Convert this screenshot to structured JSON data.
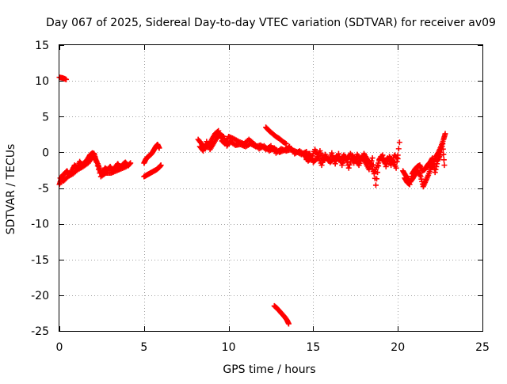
{
  "chart_data": {
    "type": "scatter",
    "title": "Day 067 of 2025, Sidereal Day-to-day VTEC variation (SDTVAR) for receiver av09",
    "xlabel": "GPS time / hours",
    "ylabel": "SDTVAR / TECUs",
    "xlim": [
      0,
      25
    ],
    "ylim": [
      -25,
      15
    ],
    "x_ticks": [
      0,
      5,
      10,
      15,
      20,
      25
    ],
    "y_ticks": [
      15,
      10,
      5,
      0,
      -5,
      -10,
      -15,
      -20,
      -25
    ],
    "x_tick_labels": [
      "0",
      "5",
      "10",
      "15",
      "20",
      "25"
    ],
    "y_tick_labels": [
      "15",
      "10",
      "5",
      "0",
      "-5",
      "-10",
      "-15",
      "-20",
      "-25"
    ],
    "grid": true,
    "marker": "plus",
    "color": "#ff0000",
    "series": [
      {
        "name": "seg1",
        "x": [
          0.0,
          0.2,
          0.4
        ],
        "y": [
          10.5,
          10.4,
          10.2
        ]
      },
      {
        "name": "seg2",
        "x": [
          0.0,
          0.1,
          0.2,
          0.3,
          0.45,
          0.6,
          0.75,
          0.9,
          1.05,
          1.2,
          1.35,
          1.5,
          1.65,
          1.8,
          1.95,
          2.05,
          2.15,
          2.3,
          2.4,
          2.5,
          2.6,
          2.7,
          2.85,
          3.0,
          3.15,
          3.3,
          3.45,
          3.6,
          3.75,
          3.9,
          4.05,
          4.2
        ],
        "y": [
          -4.5,
          -3.8,
          -3.2,
          -3.0,
          -2.6,
          -3.2,
          -2.5,
          -1.8,
          -2.2,
          -1.3,
          -1.9,
          -1.4,
          -1.0,
          -0.4,
          -0.1,
          -0.2,
          -1.0,
          -1.8,
          -2.6,
          -3.0,
          -2.7,
          -2.2,
          -2.5,
          -2.0,
          -2.6,
          -2.1,
          -1.6,
          -2.2,
          -1.7,
          -1.4,
          -1.9,
          -1.5
        ]
      },
      {
        "name": "seg2b",
        "x": [
          0.05,
          0.25,
          0.5,
          0.8,
          1.1,
          1.4,
          1.7,
          1.9,
          2.0,
          2.2,
          2.45,
          2.75,
          3.05,
          3.35,
          3.65,
          3.95
        ],
        "y": [
          -3.6,
          -4.0,
          -3.4,
          -3.0,
          -2.4,
          -2.0,
          -1.5,
          -0.8,
          -0.5,
          -1.4,
          -3.4,
          -2.9,
          -2.9,
          -2.6,
          -2.3,
          -2.0
        ]
      },
      {
        "name": "seg3",
        "x": [
          5.0,
          5.1,
          5.2,
          5.3,
          5.4,
          5.5,
          5.6,
          5.7,
          5.8,
          5.9
        ],
        "y": [
          -1.5,
          -1.0,
          -0.7,
          -0.5,
          -0.3,
          0.0,
          0.4,
          0.8,
          1.1,
          0.6
        ]
      },
      {
        "name": "seg4",
        "x": [
          5.0,
          5.15,
          5.3,
          5.45,
          5.6,
          5.75,
          5.9,
          6.0
        ],
        "y": [
          -3.4,
          -3.2,
          -3.0,
          -2.8,
          -2.6,
          -2.4,
          -2.1,
          -1.8
        ]
      },
      {
        "name": "seg5",
        "x": [
          8.2,
          8.4,
          8.6,
          8.8,
          9.0,
          9.2,
          9.4,
          9.6,
          9.8,
          10.0,
          10.3,
          10.6,
          10.9,
          11.2,
          11.5,
          11.8,
          12.1,
          12.4,
          12.7,
          13.0,
          13.3,
          13.6,
          13.9,
          14.2,
          14.5,
          14.8
        ],
        "y": [
          1.8,
          1.2,
          0.6,
          0.9,
          1.8,
          2.6,
          3.0,
          1.6,
          1.2,
          2.2,
          1.9,
          1.5,
          1.2,
          1.8,
          1.2,
          0.5,
          0.9,
          0.2,
          0.6,
          0.0,
          0.3,
          0.8,
          -0.2,
          0.2,
          -0.4,
          -0.2
        ]
      },
      {
        "name": "seg5b",
        "x": [
          8.3,
          8.5,
          8.7,
          8.9,
          9.1,
          9.3,
          9.5,
          9.7,
          9.9,
          10.1,
          10.4,
          10.7,
          11.0,
          11.3,
          11.6,
          11.9,
          12.2,
          12.5,
          12.8,
          13.1,
          13.4,
          13.7,
          14.0,
          14.3,
          14.6
        ],
        "y": [
          0.8,
          0.2,
          1.5,
          0.4,
          1.2,
          2.0,
          2.5,
          2.2,
          0.9,
          1.5,
          1.0,
          1.1,
          0.8,
          1.2,
          0.8,
          1.0,
          0.4,
          0.9,
          -0.1,
          0.5,
          0.2,
          0.4,
          0.1,
          -0.3,
          0.1
        ]
      },
      {
        "name": "seg6",
        "x": [
          12.2,
          12.4,
          12.6,
          12.8,
          13.0,
          13.2,
          13.4
        ],
        "y": [
          3.5,
          3.0,
          2.6,
          2.2,
          1.9,
          1.5,
          1.2
        ]
      },
      {
        "name": "seg7",
        "x": [
          12.7,
          12.85,
          13.0,
          13.15,
          13.3,
          13.45,
          13.55
        ],
        "y": [
          -21.5,
          -21.8,
          -22.2,
          -22.6,
          -23.0,
          -23.5,
          -24.0
        ]
      },
      {
        "name": "seg8",
        "x": [
          14.5,
          14.7,
          14.9,
          15.1,
          15.3,
          15.5,
          15.7,
          15.9,
          16.1,
          16.3,
          16.5,
          16.7,
          16.9,
          17.1,
          17.3,
          17.5,
          17.7,
          17.9,
          18.1,
          18.3,
          18.5,
          18.7,
          18.9,
          19.1,
          19.3,
          19.5,
          19.7,
          19.9,
          20.1
        ],
        "y": [
          -0.5,
          -1.2,
          -0.8,
          0.4,
          -0.6,
          -1.8,
          -0.3,
          -1.2,
          -0.1,
          -1.6,
          -0.2,
          -1.8,
          -0.6,
          -2.2,
          -0.4,
          -1.0,
          -1.8,
          -0.7,
          -1.5,
          -2.4,
          -0.8,
          -4.6,
          -1.0,
          -0.4,
          -2.0,
          -0.6,
          -1.2,
          -2.2,
          1.4
        ]
      },
      {
        "name": "seg8b",
        "x": [
          14.6,
          14.8,
          15.0,
          15.2,
          15.4,
          15.6,
          15.8,
          16.0,
          16.2,
          16.4,
          16.6,
          16.8,
          17.0,
          17.2,
          17.4,
          17.6,
          17.8,
          18.0,
          18.2,
          18.4,
          18.6,
          18.8,
          19.0,
          19.2,
          19.4,
          19.6,
          19.8,
          20.0
        ],
        "y": [
          -1.0,
          -0.2,
          -1.4,
          -0.9,
          0.2,
          -1.1,
          -0.7,
          -1.4,
          -0.9,
          -0.6,
          -1.2,
          -0.4,
          -1.0,
          -0.2,
          -1.5,
          -0.3,
          -1.1,
          -0.2,
          -1.0,
          -1.6,
          -3.0,
          -1.8,
          -0.6,
          -1.4,
          -0.8,
          -1.8,
          -0.4,
          -0.9
        ]
      },
      {
        "name": "seg9",
        "x": [
          20.3,
          20.45,
          20.6,
          20.75,
          20.9,
          21.05,
          21.2,
          21.35,
          21.5,
          21.65,
          21.8,
          21.95,
          22.1,
          22.25,
          22.4,
          22.55,
          22.7,
          22.8
        ],
        "y": [
          -2.6,
          -3.2,
          -3.8,
          -4.1,
          -3.6,
          -3.0,
          -2.6,
          -3.4,
          -4.8,
          -4.0,
          -3.2,
          -2.2,
          -1.6,
          -0.6,
          0.0,
          0.8,
          1.8,
          2.6
        ]
      },
      {
        "name": "seg9b",
        "x": [
          20.4,
          20.55,
          20.7,
          20.85,
          21.0,
          21.15,
          21.3,
          21.45,
          21.6,
          21.75,
          21.9,
          22.05,
          22.2,
          22.35,
          22.5,
          22.65,
          22.75
        ],
        "y": [
          -3.6,
          -4.2,
          -4.5,
          -3.0,
          -2.4,
          -2.0,
          -1.8,
          -2.6,
          -2.4,
          -1.8,
          -1.4,
          -0.8,
          -2.8,
          -1.2,
          -0.4,
          1.2,
          -1.8
        ]
      }
    ]
  }
}
